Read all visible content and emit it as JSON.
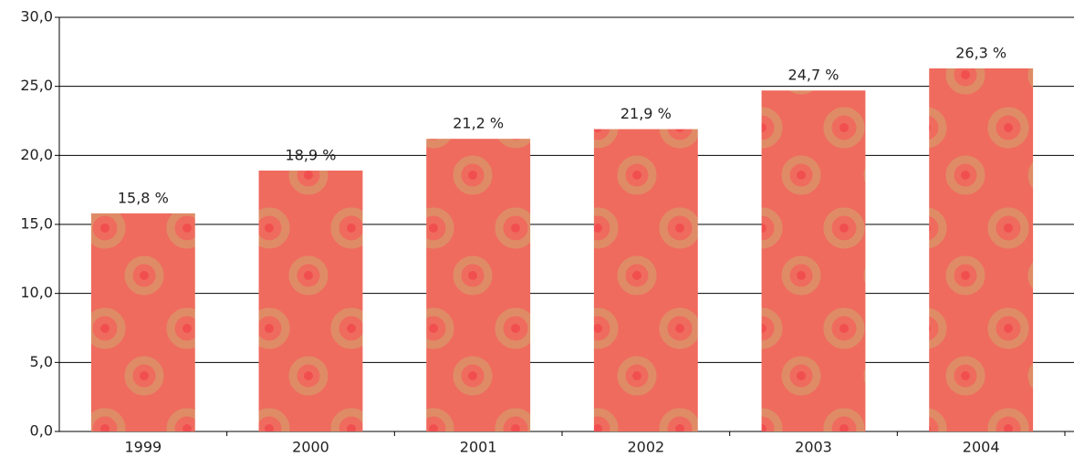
{
  "chart_data": {
    "type": "bar",
    "categories": [
      "1999",
      "2000",
      "2001",
      "2002",
      "2003",
      "2004"
    ],
    "values": [
      15.8,
      18.9,
      21.2,
      21.9,
      24.7,
      26.3
    ],
    "value_labels": [
      "15,8 %",
      "18,9 %",
      "21,2 %",
      "21,9 %",
      "24,7 %",
      "26,3 %"
    ],
    "color": "#ef6b5e",
    "ylim": [
      0,
      30
    ],
    "yticks": [
      {
        "value": 0,
        "label": "0,0"
      },
      {
        "value": 5,
        "label": "5,0"
      },
      {
        "value": 10,
        "label": "10,0"
      },
      {
        "value": 15,
        "label": "15,0"
      },
      {
        "value": 20,
        "label": "20,0"
      },
      {
        "value": 25,
        "label": "25,0"
      },
      {
        "value": 30,
        "label": "30,0"
      }
    ],
    "grid": true
  }
}
